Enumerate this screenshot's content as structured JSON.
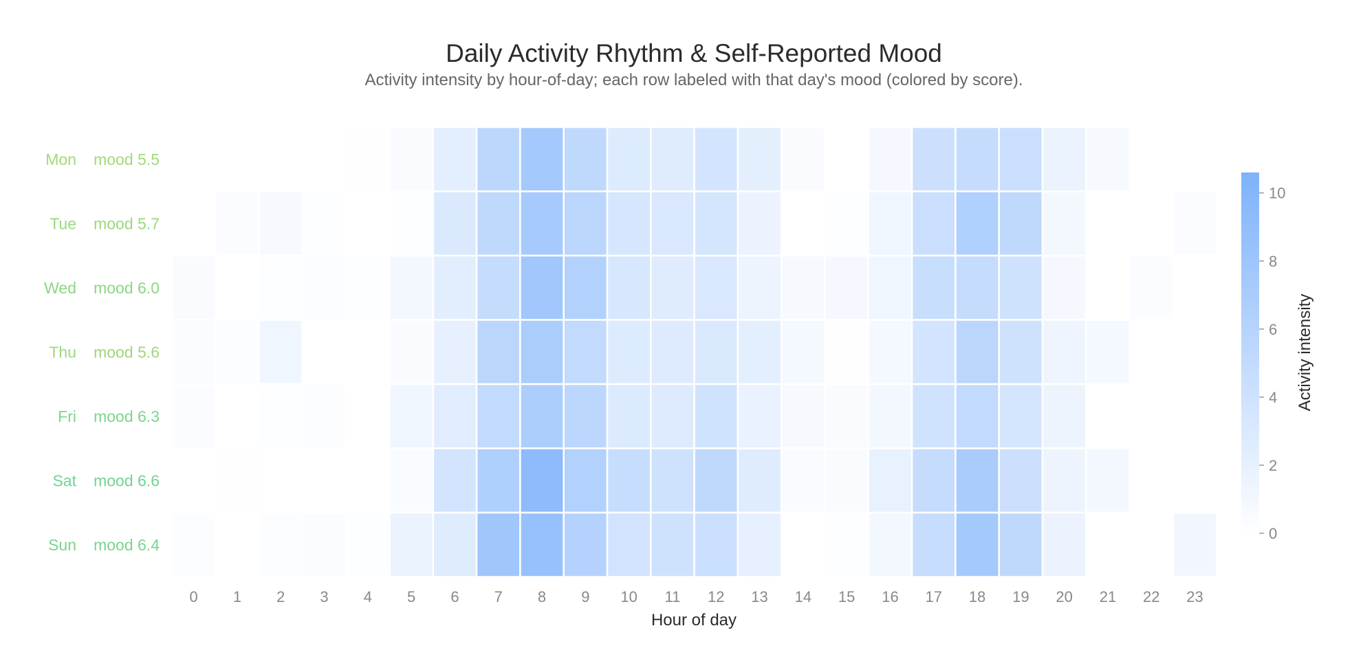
{
  "chart_data": {
    "type": "heatmap",
    "title": "Daily Activity Rhythm & Self-Reported Mood",
    "subtitle": "Activity intensity by hour-of-day; each row labeled with that day's mood (colored by score).",
    "xlabel": "Hour of day",
    "x": [
      0,
      1,
      2,
      3,
      4,
      5,
      6,
      7,
      8,
      9,
      10,
      11,
      12,
      13,
      14,
      15,
      16,
      17,
      18,
      19,
      20,
      21,
      22,
      23
    ],
    "rows": [
      {
        "day": "Mon",
        "mood_label": "mood 5.5",
        "mood": 5.5,
        "mood_color": "#a3d977",
        "values": [
          0,
          0,
          0,
          0,
          0.1,
          0.5,
          2.3,
          5.5,
          7.5,
          5.3,
          2.8,
          2.6,
          3.6,
          2.2,
          0.5,
          0,
          0.8,
          4.2,
          4.8,
          4.4,
          1.7,
          0.7,
          0,
          0
        ]
      },
      {
        "day": "Tue",
        "mood_label": "mood 5.7",
        "mood": 5.7,
        "mood_color": "#99d97c",
        "values": [
          0,
          0.4,
          0.7,
          0.2,
          0,
          0.2,
          3.0,
          5.3,
          7.3,
          5.6,
          3.4,
          3.1,
          3.5,
          1.6,
          0,
          0.2,
          1.3,
          4.4,
          6.5,
          5.3,
          1.0,
          0,
          0,
          0.4
        ]
      },
      {
        "day": "Wed",
        "mood_label": "mood 6.0",
        "mood": 6.0,
        "mood_color": "#8bd782",
        "values": [
          0.5,
          0,
          0.2,
          0.3,
          0.2,
          1.0,
          2.4,
          4.8,
          7.7,
          6.3,
          3.3,
          2.6,
          3.1,
          1.5,
          0.7,
          0.8,
          1.3,
          4.5,
          4.8,
          4.0,
          0.8,
          0,
          0.4,
          0
        ]
      },
      {
        "day": "Thu",
        "mood_label": "mood 5.6",
        "mood": 5.6,
        "mood_color": "#9ed87a",
        "values": [
          0.4,
          0.3,
          1.3,
          0,
          0,
          0.5,
          2.0,
          5.7,
          6.9,
          5.1,
          2.8,
          2.7,
          3.0,
          2.2,
          0.9,
          0.1,
          0.9,
          3.7,
          5.7,
          4.0,
          1.4,
          0.9,
          0,
          0
        ]
      },
      {
        "day": "Fri",
        "mood_label": "mood 6.3",
        "mood": 6.3,
        "mood_color": "#7dd68a",
        "values": [
          0.4,
          0,
          0.2,
          0.3,
          0,
          1.2,
          2.5,
          5.1,
          6.8,
          5.5,
          2.9,
          2.7,
          3.9,
          1.8,
          0.7,
          0.5,
          1.0,
          3.9,
          5.1,
          3.5,
          1.5,
          0,
          0,
          0
        ]
      },
      {
        "day": "Sat",
        "mood_label": "mood 6.6",
        "mood": 6.6,
        "mood_color": "#6fd492",
        "values": [
          0,
          0.1,
          0,
          0,
          0,
          0.6,
          3.7,
          6.6,
          9.4,
          6.3,
          4.7,
          4.0,
          5.3,
          2.6,
          0.6,
          0.5,
          1.9,
          4.8,
          7.0,
          4.2,
          1.5,
          1.0,
          0,
          0
        ]
      },
      {
        "day": "Sun",
        "mood_label": "mood 6.4",
        "mood": 6.4,
        "mood_color": "#79d58d",
        "values": [
          0.3,
          0,
          0.3,
          0.4,
          0.2,
          1.7,
          2.6,
          7.8,
          8.6,
          6.2,
          3.8,
          4.0,
          4.4,
          2.0,
          0,
          0.2,
          1.0,
          4.7,
          7.5,
          5.3,
          1.6,
          0,
          0,
          1.1
        ]
      }
    ],
    "colorbar": {
      "label": "Activity intensity",
      "vmin": 0,
      "vmax": 10.6,
      "ticks": [
        0,
        2,
        4,
        6,
        8,
        10
      ],
      "color_low": "#ffffff",
      "color_high": "#7eb2fb"
    },
    "grid": false
  }
}
